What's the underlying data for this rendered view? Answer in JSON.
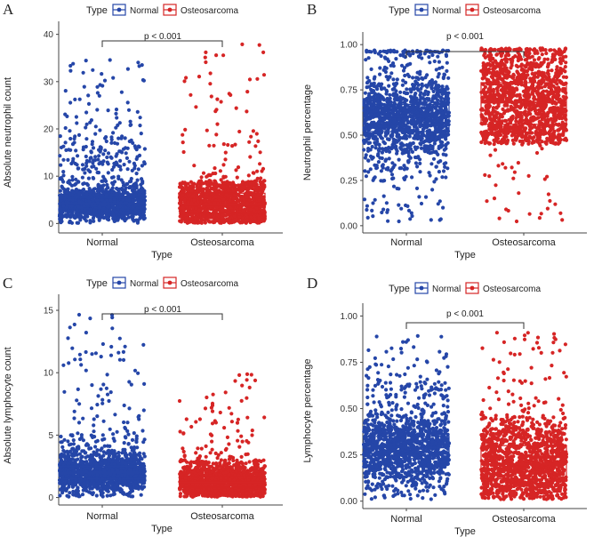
{
  "colors": {
    "normal": "#2546a8",
    "osteosarcoma": "#d62525",
    "axis": "#444444"
  },
  "chart_data": [
    {
      "panel": "A",
      "type": "box+jitter",
      "legend_title": "Type",
      "legend_items": [
        "Normal",
        "Osteosarcoma"
      ],
      "xlabel": "Type",
      "ylabel": "Absolute neutrophil count",
      "categories": [
        "Normal",
        "Osteosarcoma"
      ],
      "ylim": [
        -2,
        42
      ],
      "yticks": [
        0,
        10,
        20,
        30,
        40
      ],
      "ytick_labels": [
        "0",
        "10",
        "20",
        "30",
        "40"
      ],
      "pvalue": "p < 0.001",
      "boxes": [
        {
          "name": "Normal",
          "q1": 3.1,
          "median": 4.2,
          "q3": 5.4,
          "jitter_min": 0.1,
          "dense_max": 17,
          "sparse_max": 35
        },
        {
          "name": "Osteosarcoma",
          "q1": 2.2,
          "median": 4.0,
          "q3": 6.4,
          "jitter_min": 0.1,
          "dense_max": 9,
          "sparse_max": 39
        }
      ]
    },
    {
      "panel": "B",
      "type": "box+jitter",
      "legend_title": "Type",
      "legend_items": [
        "Normal",
        "Osteosarcoma"
      ],
      "xlabel": "Type",
      "ylabel": "Neutrophil percentage",
      "categories": [
        "Normal",
        "Osteosarcoma"
      ],
      "ylim": [
        -0.04,
        1.05
      ],
      "yticks": [
        0,
        0.25,
        0.5,
        0.75,
        1.0
      ],
      "ytick_labels": [
        "0.00",
        "0.25",
        "0.50",
        "0.75",
        "1.00"
      ],
      "pvalue": "p < 0.001",
      "boxes": [
        {
          "name": "Normal",
          "q1": 0.52,
          "median": 0.6,
          "q3": 0.67,
          "jitter_min": 0.02,
          "dense_max": 0.96,
          "dense_min": 0.25,
          "sparse_max": 0.97
        },
        {
          "name": "Osteosarcoma",
          "q1": 0.56,
          "median": 0.68,
          "q3": 0.79,
          "jitter_min": 0.02,
          "dense_max": 0.97,
          "dense_min": 0.45,
          "sparse_max": 0.98
        }
      ]
    },
    {
      "panel": "C",
      "type": "box+jitter",
      "legend_title": "Type",
      "legend_items": [
        "Normal",
        "Osteosarcoma"
      ],
      "xlabel": "Type",
      "ylabel": "Absolute lymphocyte count",
      "categories": [
        "Normal",
        "Osteosarcoma"
      ],
      "ylim": [
        -0.6,
        16
      ],
      "yticks": [
        0,
        5,
        10,
        15
      ],
      "ytick_labels": [
        "0",
        "5",
        "10",
        "15"
      ],
      "pvalue": "p < 0.001",
      "boxes": [
        {
          "name": "Normal",
          "q1": 1.5,
          "median": 2.0,
          "q3": 2.5,
          "jitter_min": 0.05,
          "dense_max": 5,
          "sparse_max": 14.7
        },
        {
          "name": "Osteosarcoma",
          "q1": 0.8,
          "median": 1.2,
          "q3": 1.7,
          "jitter_min": 0.05,
          "dense_max": 3,
          "sparse_max": 9.9
        }
      ]
    },
    {
      "panel": "D",
      "type": "box+jitter",
      "legend_title": "Type",
      "legend_items": [
        "Normal",
        "Osteosarcoma"
      ],
      "xlabel": "Type",
      "ylabel": "Lymphocyte percentage",
      "categories": [
        "Normal",
        "Osteosarcoma"
      ],
      "ylim": [
        -0.04,
        1.05
      ],
      "yticks": [
        0,
        0.25,
        0.5,
        0.75,
        1.0
      ],
      "ytick_labels": [
        "0.00",
        "0.25",
        "0.50",
        "0.75",
        "1.00"
      ],
      "pvalue": "p < 0.001",
      "boxes": [
        {
          "name": "Normal",
          "q1": 0.23,
          "median": 0.29,
          "q3": 0.35,
          "jitter_min": 0.01,
          "dense_max": 0.6,
          "sparse_max": 0.9
        },
        {
          "name": "Osteosarcoma",
          "q1": 0.12,
          "median": 0.2,
          "q3": 0.3,
          "jitter_min": 0.01,
          "dense_max": 0.45,
          "sparse_max": 0.95
        }
      ]
    }
  ]
}
